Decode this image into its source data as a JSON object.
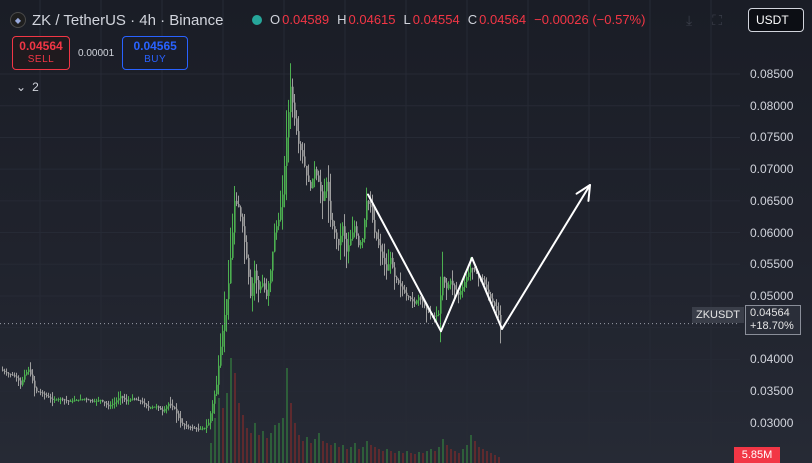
{
  "header": {
    "symbol_title": "ZK / TetherUS · 4h · Binance",
    "icon_name": "binance-coin-icon",
    "ohlc": {
      "o_key": "O",
      "o_val": "0.04589",
      "h_key": "H",
      "h_val": "0.04615",
      "l_key": "L",
      "l_val": "0.04554",
      "c_key": "C",
      "c_val": "0.04564",
      "change": "−0.00026 (−0.57%)"
    }
  },
  "trade": {
    "sell_price": "0.04564",
    "sell_label": "SELL",
    "spread": "0.00001",
    "buy_price": "0.04565",
    "buy_label": "BUY"
  },
  "indicators": {
    "count": "2",
    "icon": "chevron-down-icon"
  },
  "toolbar": {
    "currency": "USDT"
  },
  "price_badge": {
    "symbol": "ZKUSDT",
    "price": "0.04564",
    "change": "+18.70%"
  },
  "volume_badge": "5.85M",
  "colors": {
    "up": "#4caf50",
    "down": "#9e9e9e",
    "vol_up": "#2e5e3a",
    "vol_down": "#5e2a2e",
    "pattern": "#ffffff"
  },
  "chart_data": {
    "type": "candlestick",
    "y_axis": {
      "ticks": [
        "0.08500",
        "0.08000",
        "0.07500",
        "0.07000",
        "0.06500",
        "0.06000",
        "0.05500",
        "0.05000",
        "0.04500",
        "0.04000",
        "0.03500",
        "0.03000"
      ],
      "range": [
        0.0265,
        0.088
      ]
    },
    "last_price": 0.04564,
    "price_path": [
      [
        0,
        0.0384
      ],
      [
        6,
        0.0378
      ],
      [
        12,
        0.0375
      ],
      [
        17,
        0.037
      ],
      [
        20,
        0.036
      ],
      [
        24,
        0.0376
      ],
      [
        28,
        0.0384
      ],
      [
        31,
        0.0372
      ],
      [
        35,
        0.035
      ],
      [
        40,
        0.0348
      ],
      [
        46,
        0.0342
      ],
      [
        52,
        0.0336
      ],
      [
        60,
        0.0338
      ],
      [
        68,
        0.0334
      ],
      [
        76,
        0.0336
      ],
      [
        84,
        0.0338
      ],
      [
        92,
        0.0334
      ],
      [
        100,
        0.0336
      ],
      [
        108,
        0.0326
      ],
      [
        114,
        0.0332
      ],
      [
        120,
        0.0342
      ],
      [
        126,
        0.0334
      ],
      [
        132,
        0.0338
      ],
      [
        140,
        0.0334
      ],
      [
        148,
        0.0324
      ],
      [
        156,
        0.0326
      ],
      [
        162,
        0.0318
      ],
      [
        168,
        0.033
      ],
      [
        174,
        0.0322
      ],
      [
        180,
        0.03
      ],
      [
        186,
        0.0294
      ],
      [
        192,
        0.0292
      ],
      [
        198,
        0.029
      ],
      [
        204,
        0.0292
      ],
      [
        208,
        0.03
      ],
      [
        212,
        0.033
      ],
      [
        216,
        0.036
      ],
      [
        220,
        0.042
      ],
      [
        224,
        0.047
      ],
      [
        228,
        0.052
      ],
      [
        232,
        0.06
      ],
      [
        234,
        0.065
      ],
      [
        238,
        0.064
      ],
      [
        242,
        0.061
      ],
      [
        246,
        0.056
      ],
      [
        250,
        0.05
      ],
      [
        254,
        0.054
      ],
      [
        258,
        0.051
      ],
      [
        262,
        0.052
      ],
      [
        266,
        0.05
      ],
      [
        270,
        0.054
      ],
      [
        274,
        0.06
      ],
      [
        278,
        0.062
      ],
      [
        282,
        0.066
      ],
      [
        286,
        0.075
      ],
      [
        290,
        0.083
      ],
      [
        294,
        0.078
      ],
      [
        298,
        0.074
      ],
      [
        302,
        0.072
      ],
      [
        306,
        0.069
      ],
      [
        310,
        0.067
      ],
      [
        314,
        0.07
      ],
      [
        318,
        0.068
      ],
      [
        322,
        0.065
      ],
      [
        326,
        0.068
      ],
      [
        330,
        0.062
      ],
      [
        334,
        0.06
      ],
      [
        338,
        0.058
      ],
      [
        342,
        0.061
      ],
      [
        346,
        0.057
      ],
      [
        350,
        0.059
      ],
      [
        354,
        0.061
      ],
      [
        358,
        0.058
      ],
      [
        362,
        0.059
      ],
      [
        366,
        0.065
      ],
      [
        370,
        0.064
      ],
      [
        374,
        0.06
      ],
      [
        378,
        0.058
      ],
      [
        382,
        0.056
      ],
      [
        386,
        0.054
      ],
      [
        390,
        0.056
      ],
      [
        394,
        0.053
      ],
      [
        398,
        0.052
      ],
      [
        402,
        0.051
      ],
      [
        406,
        0.05
      ],
      [
        410,
        0.0495
      ],
      [
        414,
        0.0488
      ],
      [
        418,
        0.0498
      ],
      [
        422,
        0.049
      ],
      [
        426,
        0.0478
      ],
      [
        430,
        0.047
      ],
      [
        434,
        0.0468
      ],
      [
        438,
        0.0472
      ],
      [
        442,
        0.053
      ],
      [
        446,
        0.0512
      ],
      [
        450,
        0.0524
      ],
      [
        454,
        0.051
      ],
      [
        458,
        0.0502
      ],
      [
        462,
        0.0514
      ],
      [
        466,
        0.053
      ],
      [
        470,
        0.0544
      ],
      [
        474,
        0.054
      ],
      [
        478,
        0.053
      ],
      [
        482,
        0.0526
      ],
      [
        486,
        0.051
      ],
      [
        490,
        0.0496
      ],
      [
        494,
        0.0484
      ],
      [
        498,
        0.047
      ],
      [
        500,
        0.04564
      ]
    ],
    "volume": [
      [
        210,
        20
      ],
      [
        214,
        45
      ],
      [
        218,
        65
      ],
      [
        222,
        55
      ],
      [
        226,
        70
      ],
      [
        230,
        105
      ],
      [
        234,
        90
      ],
      [
        238,
        60
      ],
      [
        242,
        48
      ],
      [
        246,
        35
      ],
      [
        250,
        30
      ],
      [
        254,
        40
      ],
      [
        258,
        28
      ],
      [
        262,
        32
      ],
      [
        266,
        25
      ],
      [
        270,
        30
      ],
      [
        274,
        38
      ],
      [
        278,
        40
      ],
      [
        282,
        45
      ],
      [
        286,
        95
      ],
      [
        290,
        60
      ],
      [
        294,
        40
      ],
      [
        298,
        28
      ],
      [
        302,
        22
      ],
      [
        306,
        26
      ],
      [
        310,
        20
      ],
      [
        314,
        24
      ],
      [
        318,
        30
      ],
      [
        322,
        22
      ],
      [
        326,
        20
      ],
      [
        330,
        18
      ],
      [
        334,
        20
      ],
      [
        338,
        16
      ],
      [
        342,
        18
      ],
      [
        346,
        14
      ],
      [
        350,
        16
      ],
      [
        354,
        20
      ],
      [
        358,
        14
      ],
      [
        362,
        16
      ],
      [
        366,
        22
      ],
      [
        370,
        18
      ],
      [
        374,
        16
      ],
      [
        378,
        14
      ],
      [
        382,
        12
      ],
      [
        386,
        14
      ],
      [
        390,
        12
      ],
      [
        394,
        10
      ],
      [
        398,
        12
      ],
      [
        402,
        10
      ],
      [
        406,
        12
      ],
      [
        410,
        10
      ],
      [
        414,
        9
      ],
      [
        418,
        11
      ],
      [
        422,
        10
      ],
      [
        426,
        12
      ],
      [
        430,
        14
      ],
      [
        434,
        12
      ],
      [
        438,
        16
      ],
      [
        442,
        24
      ],
      [
        446,
        18
      ],
      [
        450,
        14
      ],
      [
        454,
        12
      ],
      [
        458,
        10
      ],
      [
        462,
        14
      ],
      [
        466,
        18
      ],
      [
        470,
        28
      ],
      [
        474,
        22
      ],
      [
        478,
        16
      ],
      [
        482,
        14
      ],
      [
        486,
        12
      ],
      [
        490,
        10
      ],
      [
        494,
        8
      ],
      [
        498,
        6
      ]
    ],
    "pattern_lines": [
      [
        [
          368,
          0.066
        ],
        [
          441,
          0.04445
        ]
      ],
      [
        [
          441,
          0.04445
        ],
        [
          472,
          0.056
        ]
      ],
      [
        [
          472,
          0.056
        ],
        [
          502,
          0.0448
        ]
      ],
      [
        [
          502,
          0.0448
        ],
        [
          590,
          0.0675
        ]
      ]
    ]
  }
}
